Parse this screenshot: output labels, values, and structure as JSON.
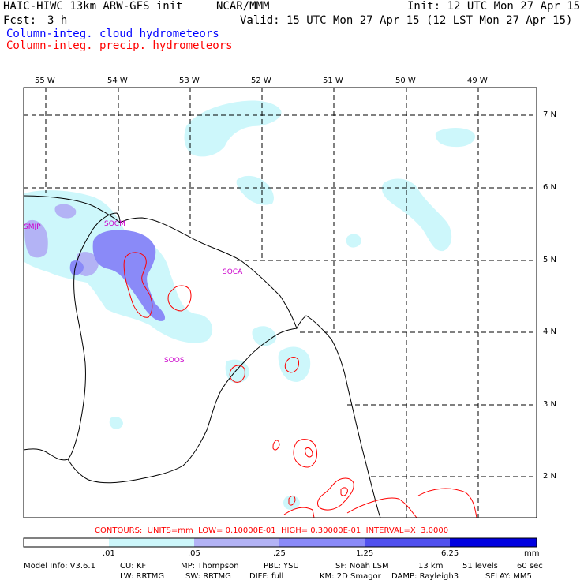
{
  "header": {
    "model_title": "HAIC-HIWC 13km ARW-GFS init",
    "org": "NCAR/MMM",
    "init_time": "Init: 12 UTC Mon 27 Apr 15",
    "forecast_label": "Fcst:",
    "forecast_hours": "3 h",
    "valid_time": "Valid: 15 UTC Mon 27 Apr 15 (12 LST Mon 27 Apr 15)",
    "field_cloud": "Column-integ. cloud hydrometeors",
    "field_precip": "Column-integ. precip. hydrometeors"
  },
  "colors": {
    "cloud_text": "#0000ff",
    "precip_text": "#ff0000",
    "shade_01": "#cdf7fb",
    "shade_05": "#b3b3f5",
    "shade_25": "#8a8af8",
    "shade_125": "#5050ee",
    "shade_625": "#0000e0",
    "contour_line": "#ff0000",
    "station_text": "#cc00cc"
  },
  "map": {
    "lon_labels": [
      "55 W",
      "54 W",
      "53 W",
      "52 W",
      "51 W",
      "50 W",
      "49 W"
    ],
    "lat_labels": [
      "7 N",
      "6 N",
      "5 N",
      "4 N",
      "3 N",
      "2 N"
    ],
    "stations": [
      "SMJP",
      "SOCM",
      "SOCA",
      "SOOS"
    ]
  },
  "contour_note": "CONTOURS:  UNITS=mm  LOW= 0.10000E-01  HIGH= 0.30000E-01  INTERVAL=X  3.0000",
  "colorbar": {
    "tick_labels": [
      ".01",
      ".05",
      ".25",
      "1.25",
      "6.25"
    ],
    "units": "mm"
  },
  "footer": {
    "line1": [
      "Model Info: V3.6.1",
      "CU: KF",
      "MP: Thompson",
      "PBL: YSU",
      "SF: Noah LSM",
      "13 km",
      "51 levels",
      "60 sec"
    ],
    "line2": [
      "LW: RRTMG",
      "SW: RRTMG",
      "DIFF: full",
      "KM: 2D Smagor",
      "DAMP: Rayleigh3",
      "SFLAY: MM5"
    ]
  }
}
